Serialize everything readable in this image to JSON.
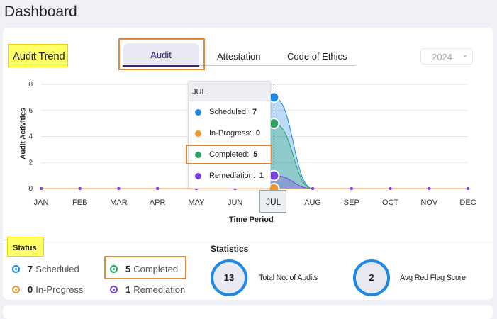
{
  "page_title": "Dashboard",
  "section_title": "Audit Trend",
  "tabs": [
    {
      "label": "Audit",
      "active": true
    },
    {
      "label": "Attestation"
    },
    {
      "label": "Code of Ethics"
    }
  ],
  "year_select": {
    "value": "2024"
  },
  "chart_data": {
    "type": "area",
    "xlabel": "Time Period",
    "ylabel": "Audit Activities",
    "categories": [
      "JAN",
      "FEB",
      "MAR",
      "APR",
      "MAY",
      "JUN",
      "JUL",
      "AUG",
      "SEP",
      "OCT",
      "NOV",
      "DEC"
    ],
    "ylim": [
      0,
      8
    ],
    "yticks": [
      "0",
      "2",
      "4",
      "6",
      "8"
    ],
    "grid": true,
    "series": [
      {
        "name": "Scheduled",
        "color": "#1e88e5",
        "values": [
          0,
          0,
          0,
          0,
          0,
          0,
          7,
          0,
          0,
          0,
          0,
          0
        ]
      },
      {
        "name": "In-Progress",
        "color": "#f0962e",
        "values": [
          0,
          0,
          0,
          0,
          0,
          0,
          0,
          0,
          0,
          0,
          0,
          0
        ]
      },
      {
        "name": "Completed",
        "color": "#27a35f",
        "values": [
          0,
          0,
          0,
          0,
          0,
          0,
          5,
          0,
          0,
          0,
          0,
          0
        ]
      },
      {
        "name": "Remediation",
        "color": "#7b3fe4",
        "values": [
          0,
          0,
          0,
          0,
          0,
          0,
          1,
          0,
          0,
          0,
          0,
          0
        ]
      }
    ],
    "highlighted": "JUL"
  },
  "tooltip": {
    "title": "JUL",
    "rows": [
      {
        "label": "Scheduled:",
        "value": "7",
        "color": "#1e88e5"
      },
      {
        "label": "In-Progress:",
        "value": "0",
        "color": "#f0962e"
      },
      {
        "label": "Completed:",
        "value": "5",
        "color": "#27a35f"
      },
      {
        "label": "Remediation:",
        "value": "1",
        "color": "#7b3fe4"
      }
    ]
  },
  "status": {
    "title": "Status",
    "items": [
      {
        "count": "7",
        "label": "Scheduled",
        "color": "#1e88e5"
      },
      {
        "count": "5",
        "label": "Completed",
        "color": "#27a35f"
      },
      {
        "count": "0",
        "label": "In-Progress",
        "color": "#f0962e"
      },
      {
        "count": "1",
        "label": "Remediation",
        "color": "#7b3fe4"
      }
    ]
  },
  "statistics": {
    "title": "Statistics",
    "items": [
      {
        "value": "13",
        "label": "Total No. of Audits"
      },
      {
        "value": "2",
        "label": "Avg Red Flag Score"
      }
    ]
  }
}
